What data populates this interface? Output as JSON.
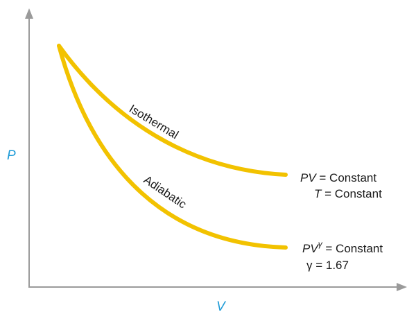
{
  "axes": {
    "x_label": "V",
    "y_label": "P",
    "label_color": "#1e9bd7",
    "axis_color": "#9a9a9a"
  },
  "curves": {
    "color": "#f2c200",
    "isothermal": {
      "label": "Isothermal",
      "eq_var": "PV",
      "eq_rest": " = Constant",
      "cond_var": "T",
      "cond_rest": " = Constant"
    },
    "adiabatic": {
      "label": "Adiabatic",
      "eq_var": "PV",
      "eq_exp": "γ",
      "eq_rest": " = Constant",
      "gamma_sym": "γ",
      "gamma_rest": " = 1.67"
    }
  }
}
